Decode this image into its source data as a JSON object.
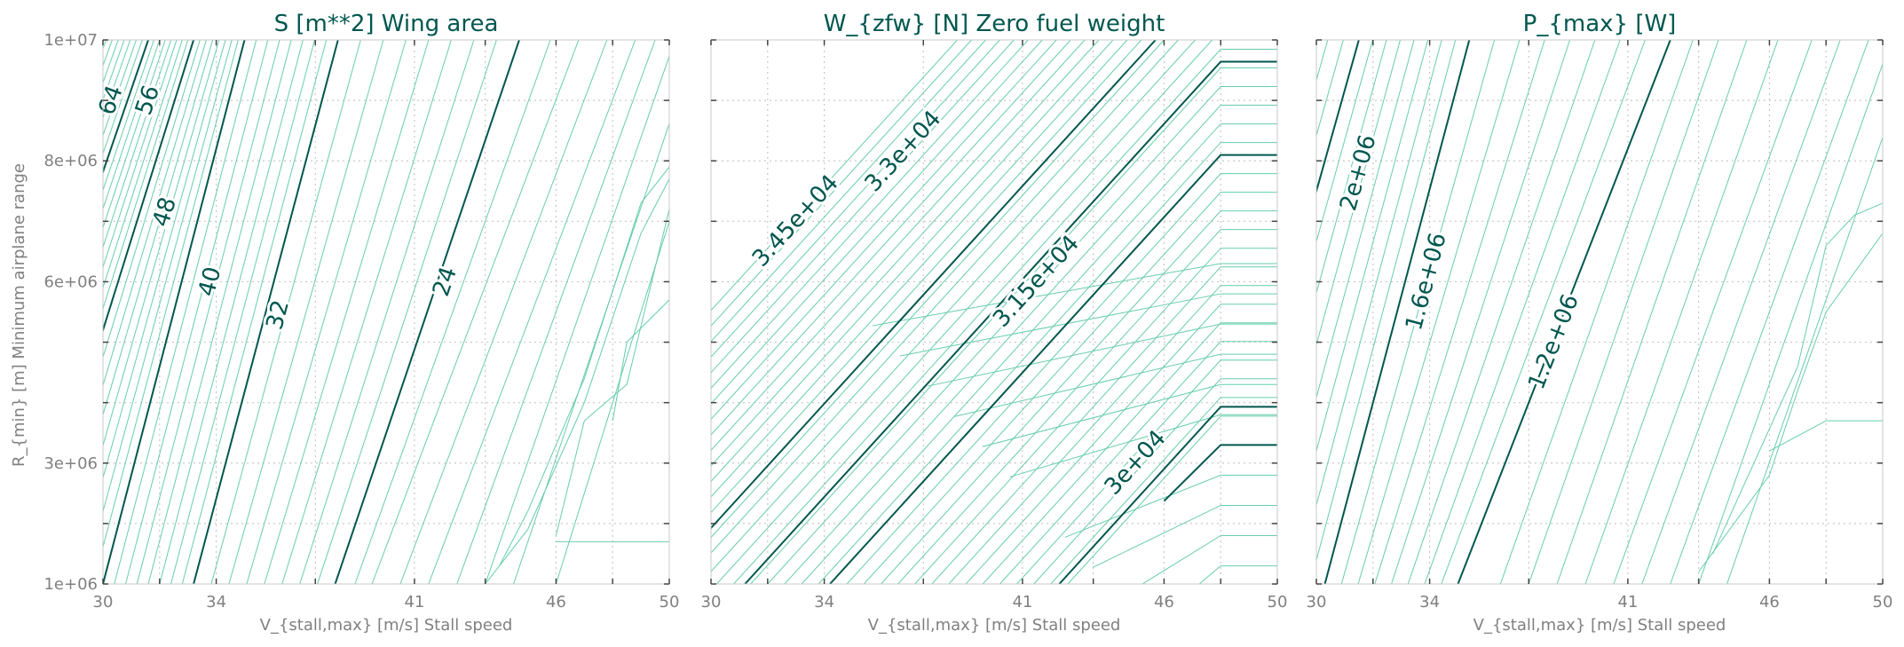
{
  "colors": {
    "major_line": "#00574f",
    "minor_line": "#66cdaa",
    "title_text": "#00574f",
    "axis_text": "#808080",
    "grid": "#c8c8c8"
  },
  "figure": {
    "shared_ylabel": "R_{min} [m]  Minimum airplane range",
    "shared_xlabel": "V_{stall,max} [m/s]  Stall speed"
  },
  "chart_data": [
    {
      "type": "contour",
      "title": "S [m**2]  Wing area",
      "xlabel": "V_{stall,max} [m/s]  Stall speed",
      "ylabel": "R_{min} [m]  Minimum airplane range",
      "xlim": [
        30,
        50
      ],
      "ylim": [
        1000000,
        10000000
      ],
      "x_ticks": [
        "30",
        "34",
        "41",
        "46",
        "50"
      ],
      "y_ticks": [
        "1e+06",
        "3e+06",
        "6e+06",
        "8e+06",
        "1e+07"
      ],
      "grid": true,
      "line_style": "crossing",
      "crossing_major": [
        {
          "label": "64",
          "x_bottom": 22.9,
          "x_top": 29.9,
          "label_x": 30.3,
          "label_y": 9000000
        },
        {
          "label": "56",
          "x_bottom": 25.0,
          "x_top": 31.6,
          "label_x": 31.6,
          "label_y": 9000000
        },
        {
          "label": "48",
          "x_bottom": 27.2,
          "x_top": 33.2,
          "label_x": 32.2,
          "label_y": 7150000
        },
        {
          "label": "40",
          "x_bottom": 30.0,
          "x_top": 35.0,
          "label_x": 33.8,
          "label_y": 6000000
        },
        {
          "label": "32",
          "x_bottom": 33.2,
          "x_top": 38.3,
          "label_x": 36.2,
          "label_y": 5450000
        },
        {
          "label": "24",
          "x_bottom": 38.2,
          "x_top": 44.7,
          "label_x": 42.1,
          "label_y": 6000000
        }
      ],
      "crossing_minor": [
        {
          "x_bottom": 38.9,
          "x_top": 45.8
        },
        {
          "x_bottom": 39.5,
          "x_top": 46.8
        },
        {
          "x_bottom": 40.5,
          "x_top": 47.8
        },
        {
          "x_bottom": 41.5,
          "x_top": 48.8
        },
        {
          "x_bottom": 42.5,
          "x_top": 49.5
        },
        {
          "x_bottom": 43.5,
          "x_top": 50.2
        },
        {
          "x_bottom": 44.5,
          "x_top": 51.0
        },
        {
          "x_bottom": 46.0,
          "x_top": 52.0
        }
      ],
      "polyline_minor": [
        [
          [
            48.0,
            3700000
          ],
          [
            48.5,
            5000000
          ],
          [
            50.0,
            5700000
          ]
        ],
        [
          [
            46.0,
            1800000
          ],
          [
            47.0,
            3700000
          ],
          [
            48.5,
            4300000
          ],
          [
            50.0,
            7200000
          ]
        ],
        [
          [
            44.0,
            1300000
          ],
          [
            45.0,
            2200000
          ],
          [
            47.0,
            4400000
          ],
          [
            49.0,
            7300000
          ],
          [
            50.0,
            7900000
          ]
        ],
        [
          [
            43.5,
            1000000
          ],
          [
            45.0,
            1900000
          ],
          [
            47.0,
            4000000
          ],
          [
            49.0,
            6800000
          ],
          [
            50.0,
            7700000
          ]
        ]
      ],
      "horizontal_minor": [
        {
          "y": 1700000,
          "x_start": 46.0,
          "x_end": 50.0
        }
      ]
    },
    {
      "type": "contour",
      "title": "W_{zfw} [N]  Zero fuel weight",
      "xlabel": "V_{stall,max} [m/s]  Stall speed",
      "xlim": [
        30,
        50
      ],
      "ylim": [
        1000000,
        10000000
      ],
      "x_ticks": [
        "30",
        "34",
        "41",
        "46",
        "50"
      ],
      "grid": true,
      "line_style": "staircase",
      "diagonal_major": [
        {
          "label": "3.45e+04",
          "x_start": 28.2,
          "label_x": 33.0,
          "label_y": 7000000
        },
        {
          "label": "3.3e+04",
          "x_start": 31.2,
          "label_x": 36.8,
          "label_y": 8150000
        },
        {
          "label": "3.15e+04",
          "x_start": 34.2,
          "label_x": 41.5,
          "label_y": 6000000
        },
        {
          "label": "3e+04",
          "x_start": 42.3,
          "label_x": 45.0,
          "label_y": 3000000
        }
      ],
      "horizontal_major": [
        {
          "y": 3300000
        }
      ],
      "diagonal_minor_start_x": [
        28.5,
        29.0,
        29.6,
        30.2,
        30.8,
        31.4,
        32.0,
        32.6,
        33.2,
        33.8,
        34.8,
        35.4,
        36.0,
        36.6,
        37.2,
        37.8,
        38.4,
        39.0,
        39.6,
        40.2,
        40.8,
        41.4,
        42.0,
        42.6
      ],
      "horizontal_minor_y": [
        1300000,
        1800000,
        2300000,
        2800000,
        3800000,
        4300000,
        4800000,
        5300000,
        5800000,
        6300000
      ]
    },
    {
      "type": "contour",
      "title": "P_{max} [W]",
      "xlabel": "V_{stall,max} [m/s]  Stall speed",
      "xlim": [
        30,
        50
      ],
      "ylim": [
        1000000,
        10000000
      ],
      "x_ticks": [
        "30",
        "34",
        "41",
        "46",
        "50"
      ],
      "grid": true,
      "line_style": "crossing",
      "crossing_major": [
        {
          "label": "2e+06",
          "x_bottom": 26.1,
          "x_top": 31.5,
          "label_x": 31.5,
          "label_y": 7800000
        },
        {
          "label": "1.6e+06",
          "x_bottom": 30.3,
          "x_top": 35.4,
          "label_x": 33.9,
          "label_y": 6000000
        },
        {
          "label": "1.2e+06",
          "x_bottom": 35.0,
          "x_top": 42.5,
          "label_x": 38.4,
          "label_y": 5000000
        }
      ],
      "crossing_minor": [
        {
          "x_bottom": 36.5,
          "x_top": 43.3
        },
        {
          "x_bottom": 37.5,
          "x_top": 44.2
        },
        {
          "x_bottom": 38.5,
          "x_top": 45.2
        },
        {
          "x_bottom": 39.5,
          "x_top": 46.3
        },
        {
          "x_bottom": 40.5,
          "x_top": 47.5
        },
        {
          "x_bottom": 41.5,
          "x_top": 48.5
        },
        {
          "x_bottom": 42.5,
          "x_top": 49.5
        },
        {
          "x_bottom": 43.5,
          "x_top": 50.3
        },
        {
          "x_bottom": 44.5,
          "x_top": 51.2
        }
      ],
      "polyline_minor": [
        [
          [
            46.0,
            3200000
          ],
          [
            48.0,
            3700000
          ],
          [
            50.0,
            3700000
          ]
        ],
        [
          [
            43.5,
            1200000
          ],
          [
            46.0,
            2800000
          ],
          [
            47.0,
            4200000
          ],
          [
            48.0,
            5500000
          ],
          [
            50.0,
            6800000
          ]
        ],
        [
          [
            44.0,
            1500000
          ],
          [
            47.0,
            4600000
          ],
          [
            48.0,
            6600000
          ],
          [
            49.0,
            7100000
          ],
          [
            50.0,
            7300000
          ]
        ]
      ]
    }
  ]
}
